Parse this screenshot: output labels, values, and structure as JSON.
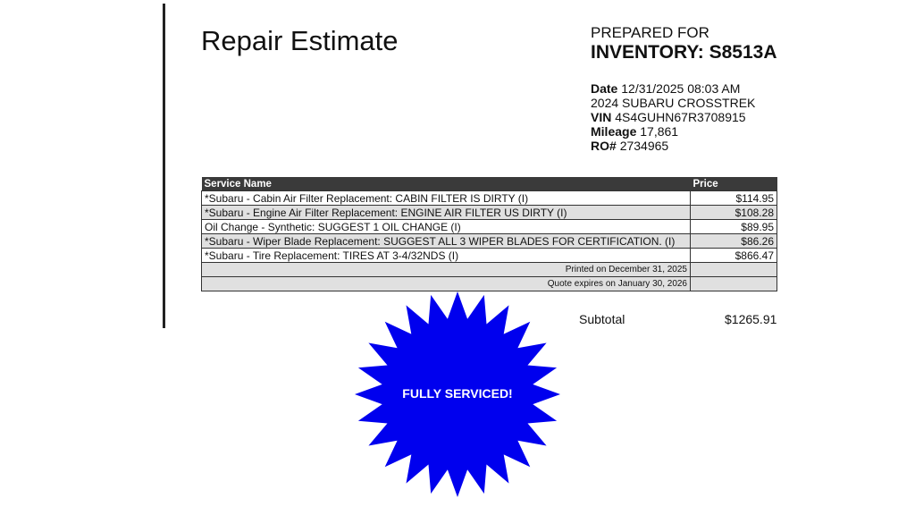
{
  "title": "Repair Estimate",
  "prepared_for_label": "PREPARED FOR",
  "inventory": "INVENTORY: S8513A",
  "info": {
    "date_label": "Date",
    "date": "12/31/2025 08:03 AM",
    "vehicle": "2024 SUBARU CROSSTREK",
    "vin_label": "VIN",
    "vin": "4S4GUHN67R3708915",
    "mileage_label": "Mileage",
    "mileage": "17,861",
    "ro_label": "RO#",
    "ro": "2734965"
  },
  "table": {
    "headers": [
      "Service Name",
      "Price"
    ],
    "rows": [
      {
        "name": "*Subaru - Cabin Air Filter Replacement: CABIN FILTER IS DIRTY (I)",
        "price": "$114.95"
      },
      {
        "name": "*Subaru - Engine Air Filter Replacement: ENGINE AIR FILTER US DIRTY (I)",
        "price": "$108.28"
      },
      {
        "name": "Oil Change - Synthetic: SUGGEST 1 OIL CHANGE (I)",
        "price": "$89.95"
      },
      {
        "name": "*Subaru - Wiper Blade Replacement: SUGGEST ALL 3 WIPER BLADES FOR CERTIFICATION. (I)",
        "price": "$86.26"
      },
      {
        "name": "*Subaru - Tire Replacement: TIRES AT 3-4/32NDS (I)",
        "price": "$866.47"
      }
    ],
    "printed": "Printed on December 31, 2025",
    "expires": "Quote expires on January 30, 2026"
  },
  "subtotal_label": "Subtotal",
  "subtotal": "$1265.91",
  "stamp": {
    "text": "FULLY SERVICED!",
    "color": "#0000ee"
  }
}
